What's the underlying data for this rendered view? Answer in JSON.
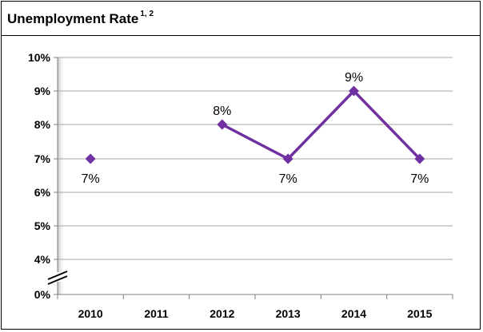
{
  "chart_data": {
    "type": "line",
    "title": "Unemployment Rate",
    "title_footnotes": "1, 2",
    "categories": [
      "2010",
      "2011",
      "2012",
      "2013",
      "2014",
      "2015"
    ],
    "series": [
      {
        "values": [
          7,
          null,
          8,
          7,
          9,
          7
        ],
        "data_labels": [
          "7%",
          "",
          "8%",
          "7%",
          "9%",
          "7%"
        ],
        "color": "#7030a0"
      }
    ],
    "y_ticks": [
      "0%",
      "4%",
      "5%",
      "6%",
      "7%",
      "8%",
      "9%",
      "10%"
    ],
    "y_tick_values": [
      0,
      4,
      5,
      6,
      7,
      8,
      9,
      10
    ],
    "y_axis_break": true,
    "grid": true,
    "xlabel": "",
    "ylabel": ""
  }
}
